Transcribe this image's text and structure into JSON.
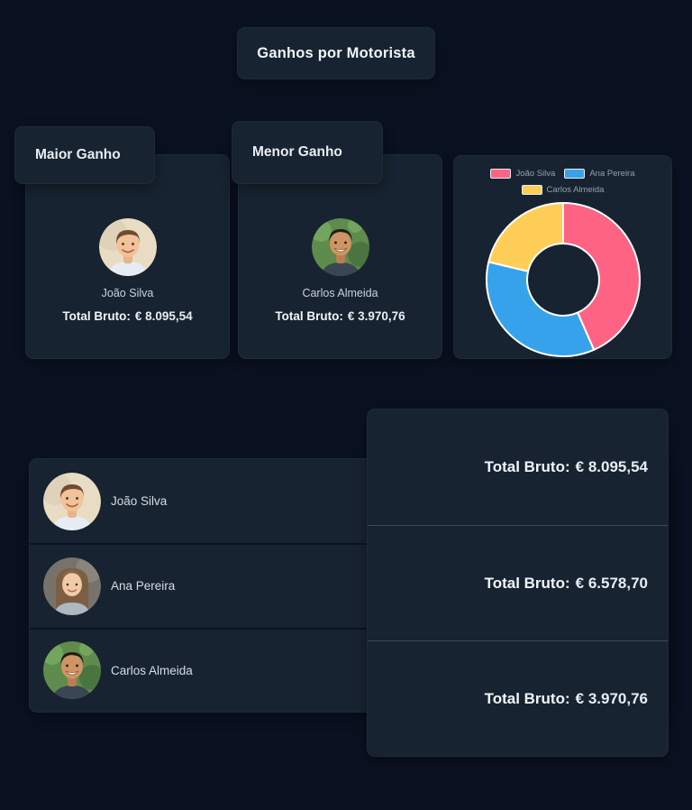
{
  "header": {
    "title": "Ganhos por Motorista"
  },
  "highlights": {
    "maior": {
      "heading": "Maior Ganho",
      "driver_name": "João Silva",
      "total_label": "Total Bruto:",
      "total_value": "€ 8.095,54"
    },
    "menor": {
      "heading": "Menor Ganho",
      "driver_name": "Carlos Almeida",
      "total_label": "Total Bruto:",
      "total_value": "€ 3.970,76"
    }
  },
  "chart_data": {
    "type": "pie",
    "subtype": "doughnut",
    "labels": [
      "João Silva",
      "Ana Pereira",
      "Carlos Almeida"
    ],
    "values": [
      8095.54,
      6578.7,
      3970.76
    ],
    "colors": [
      "#FF6384",
      "#36A2EB",
      "#FFCE56"
    ],
    "segment_border_color": "#FFFFFF",
    "legend_position": "top",
    "cutout_percent": 47,
    "start_angle_deg": -90,
    "direction": "clockwise",
    "title": ""
  },
  "table": {
    "rows": [
      {
        "name": "João Silva",
        "total_label": "Total Bruto:",
        "total_value": "€ 8.095,54"
      },
      {
        "name": "Ana Pereira",
        "total_label": "Total Bruto:",
        "total_value": "€ 6.578,70"
      },
      {
        "name": "Carlos Almeida",
        "total_label": "Total Bruto:",
        "total_value": "€ 3.970,76"
      }
    ]
  }
}
